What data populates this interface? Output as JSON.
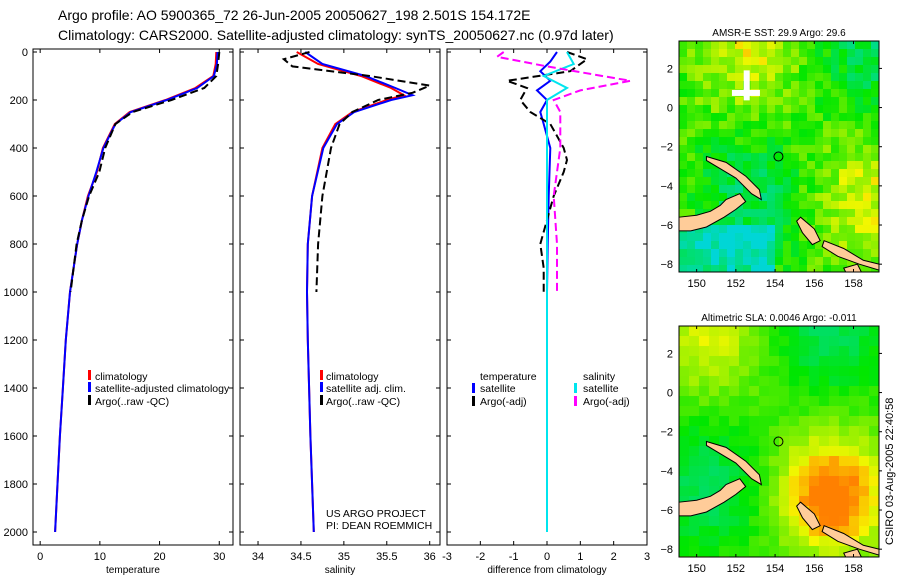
{
  "title": {
    "line1": "Argo profile: AO 5900365_72 26-Jun-2005 20050627_198 2.501S 154.172E",
    "line2": "Climatology: CARS2000. Satellite-adjusted climatology: synTS_20050627.nc (0.97d later)"
  },
  "side_label": "CSIRO 03-Aug-2005 22:40:58",
  "project_note": {
    "line1": "US ARGO PROJECT",
    "line2": "PI: DEAN ROEMMICH"
  },
  "colors": {
    "climatology": "#ff0000",
    "satellite": "#0000ff",
    "argo": "#000000",
    "sat_sal": "#00e5ee",
    "argo_sal": "#ff00ff",
    "land": "#ffcc99"
  },
  "chart_data": [
    {
      "type": "line",
      "xlabel": "temperature",
      "ylabel": "",
      "xlim": [
        -1.2,
        32.3
      ],
      "ylim": [
        2000,
        0
      ],
      "xticks": [
        "0",
        "10",
        "20",
        "30"
      ],
      "xtick_values": [
        0,
        10,
        20,
        30
      ],
      "yticks": [
        "0",
        "200",
        "400",
        "600",
        "800",
        "1000",
        "1200",
        "1400",
        "1600",
        "1800",
        "2000"
      ],
      "legend": [
        "climatology",
        "satellite-adjusted climatology",
        "Argo(..raw -QC)"
      ],
      "series": [
        {
          "name": "climatology",
          "color": "#ff0000",
          "dash": false,
          "x": [
            29.5,
            29.4,
            29,
            26,
            21,
            15,
            12.5,
            10.5,
            9.5,
            8,
            7,
            6.2,
            5,
            4.3,
            3.8,
            3.3,
            2.9,
            2.5
          ],
          "y": [
            0,
            50,
            100,
            150,
            200,
            250,
            300,
            400,
            500,
            600,
            700,
            800,
            1000,
            1200,
            1400,
            1600,
            1800,
            2000
          ]
        },
        {
          "name": "satellite-adjusted climatology",
          "color": "#0000ff",
          "dash": false,
          "x": [
            29.7,
            29.6,
            29.1,
            26.3,
            21.2,
            15.2,
            12.6,
            10.6,
            9.4,
            8.1,
            7,
            6.2,
            5,
            4.3,
            3.8,
            3.3,
            2.9,
            2.5
          ],
          "y": [
            0,
            50,
            100,
            150,
            200,
            250,
            300,
            400,
            500,
            600,
            700,
            800,
            1000,
            1200,
            1400,
            1600,
            1800,
            2000
          ]
        },
        {
          "name": "Argo(..raw -QC)",
          "color": "#000000",
          "dash": true,
          "x": [
            30,
            29.8,
            29.5,
            27.5,
            22,
            15.5,
            12.6,
            10.9,
            9.9,
            8.2,
            7,
            6.1,
            5.1
          ],
          "y": [
            0,
            50,
            100,
            150,
            200,
            250,
            300,
            400,
            500,
            600,
            700,
            800,
            1000
          ]
        }
      ]
    },
    {
      "type": "line",
      "xlabel": "salinity",
      "xlim": [
        33.79,
        36.12
      ],
      "ylim": [
        2000,
        0
      ],
      "xticks": [
        "34",
        "34.5",
        "35",
        "35.5",
        "36"
      ],
      "xtick_values": [
        34,
        34.5,
        35,
        35.5,
        36
      ],
      "legend": [
        "climatology",
        "satellite adj. clim.",
        "Argo(..raw -QC)"
      ],
      "series": [
        {
          "name": "climatology",
          "color": "#ff0000",
          "dash": false,
          "x": [
            34.45,
            34.7,
            35.2,
            35.55,
            35.7,
            35.5,
            35.1,
            34.9,
            34.75,
            34.63,
            34.58,
            34.57,
            34.58,
            34.61,
            34.65
          ],
          "y": [
            0,
            50,
            100,
            150,
            180,
            200,
            250,
            300,
            400,
            600,
            800,
            1000,
            1200,
            1600,
            2000
          ]
        },
        {
          "name": "satellite adj. clim.",
          "color": "#0000ff",
          "dash": false,
          "x": [
            34.55,
            34.75,
            35.25,
            35.6,
            35.8,
            35.55,
            35.12,
            34.92,
            34.76,
            34.63,
            34.58,
            34.57,
            34.58,
            34.61,
            34.65
          ],
          "y": [
            0,
            50,
            100,
            150,
            180,
            200,
            250,
            300,
            400,
            600,
            800,
            1000,
            1200,
            1600,
            2000
          ]
        },
        {
          "name": "Argo(..raw -QC)",
          "color": "#000000",
          "dash": true,
          "x": [
            34.6,
            34.3,
            34.4,
            35.3,
            36.0,
            35.8,
            35.4,
            35.1,
            34.95,
            34.85,
            34.75,
            34.7,
            34.68
          ],
          "y": [
            0,
            30,
            60,
            100,
            140,
            170,
            200,
            250,
            300,
            400,
            600,
            800,
            1000
          ]
        }
      ]
    },
    {
      "type": "line",
      "xlabel": "difference from climatology",
      "xlim": [
        -3,
        3
      ],
      "ylim": [
        2000,
        0
      ],
      "xticks": [
        "-3",
        "-2",
        "-1",
        "0",
        "1",
        "2",
        "3"
      ],
      "xtick_values": [
        -3,
        -2,
        -1,
        0,
        1,
        2,
        3
      ],
      "legend_temperature": {
        "title": "temperature",
        "items": [
          "satellite",
          "Argo(-adj)"
        ]
      },
      "legend_salinity": {
        "title": "salinity",
        "items": [
          "satellite",
          "Argo(-adj)"
        ]
      },
      "series": [
        {
          "name": "temperature satellite",
          "color": "#0000ff",
          "dash": false,
          "x": [
            0.3,
            0.1,
            -0.2,
            0.1,
            -0.3,
            0,
            -0.2,
            -0.1,
            0.1,
            0.05,
            0.02,
            0,
            0
          ],
          "y": [
            0,
            40,
            80,
            120,
            160,
            200,
            250,
            300,
            400,
            600,
            800,
            1000,
            2000
          ]
        },
        {
          "name": "temperature Argo(-adj)",
          "color": "#000000",
          "dash": true,
          "x": [
            0.6,
            1.2,
            0.7,
            -1.2,
            -0.6,
            -0.8,
            -0.5,
            0.1,
            0.5,
            0.6,
            0.5,
            0.2,
            -0.2,
            -0.1,
            -0.1
          ],
          "y": [
            0,
            30,
            80,
            120,
            150,
            200,
            250,
            300,
            400,
            450,
            500,
            600,
            800,
            900,
            1000
          ]
        },
        {
          "name": "salinity satellite",
          "color": "#00e5ee",
          "dash": false,
          "x": [
            0.6,
            0.8,
            -0.1,
            0.6,
            0,
            0,
            0
          ],
          "y": [
            0,
            50,
            100,
            150,
            200,
            300,
            2000
          ]
        },
        {
          "name": "salinity Argo(-adj)",
          "color": "#ff00ff",
          "dash": true,
          "x": [
            -1.3,
            -1.5,
            0,
            2.5,
            1,
            0.2,
            0.4,
            0.4,
            0.2,
            0.3,
            0.3
          ],
          "y": [
            0,
            20,
            60,
            120,
            160,
            200,
            250,
            400,
            600,
            800,
            1000
          ]
        }
      ]
    },
    {
      "type": "heatmap",
      "title": "AMSR-E SST: 29.9 Argo: 29.6",
      "xlim": [
        149.1,
        159.3
      ],
      "ylim": [
        -8.4,
        3.4
      ],
      "xticks": [
        "150",
        "152",
        "154",
        "156",
        "158"
      ],
      "yticks": [
        "2",
        "0",
        "-2",
        "-4",
        "-6",
        "-8"
      ],
      "float_position": [
        154.172,
        -2.501
      ]
    },
    {
      "type": "heatmap",
      "title": "Altimetric SLA: 0.0046 Argo: -0.011",
      "xlim": [
        149.1,
        159.3
      ],
      "ylim": [
        -8.4,
        3.4
      ],
      "xticks": [
        "150",
        "152",
        "154",
        "156",
        "158"
      ],
      "yticks": [
        "2",
        "0",
        "-2",
        "-4",
        "-6",
        "-8"
      ],
      "float_position": [
        154.172,
        -2.501
      ]
    }
  ]
}
